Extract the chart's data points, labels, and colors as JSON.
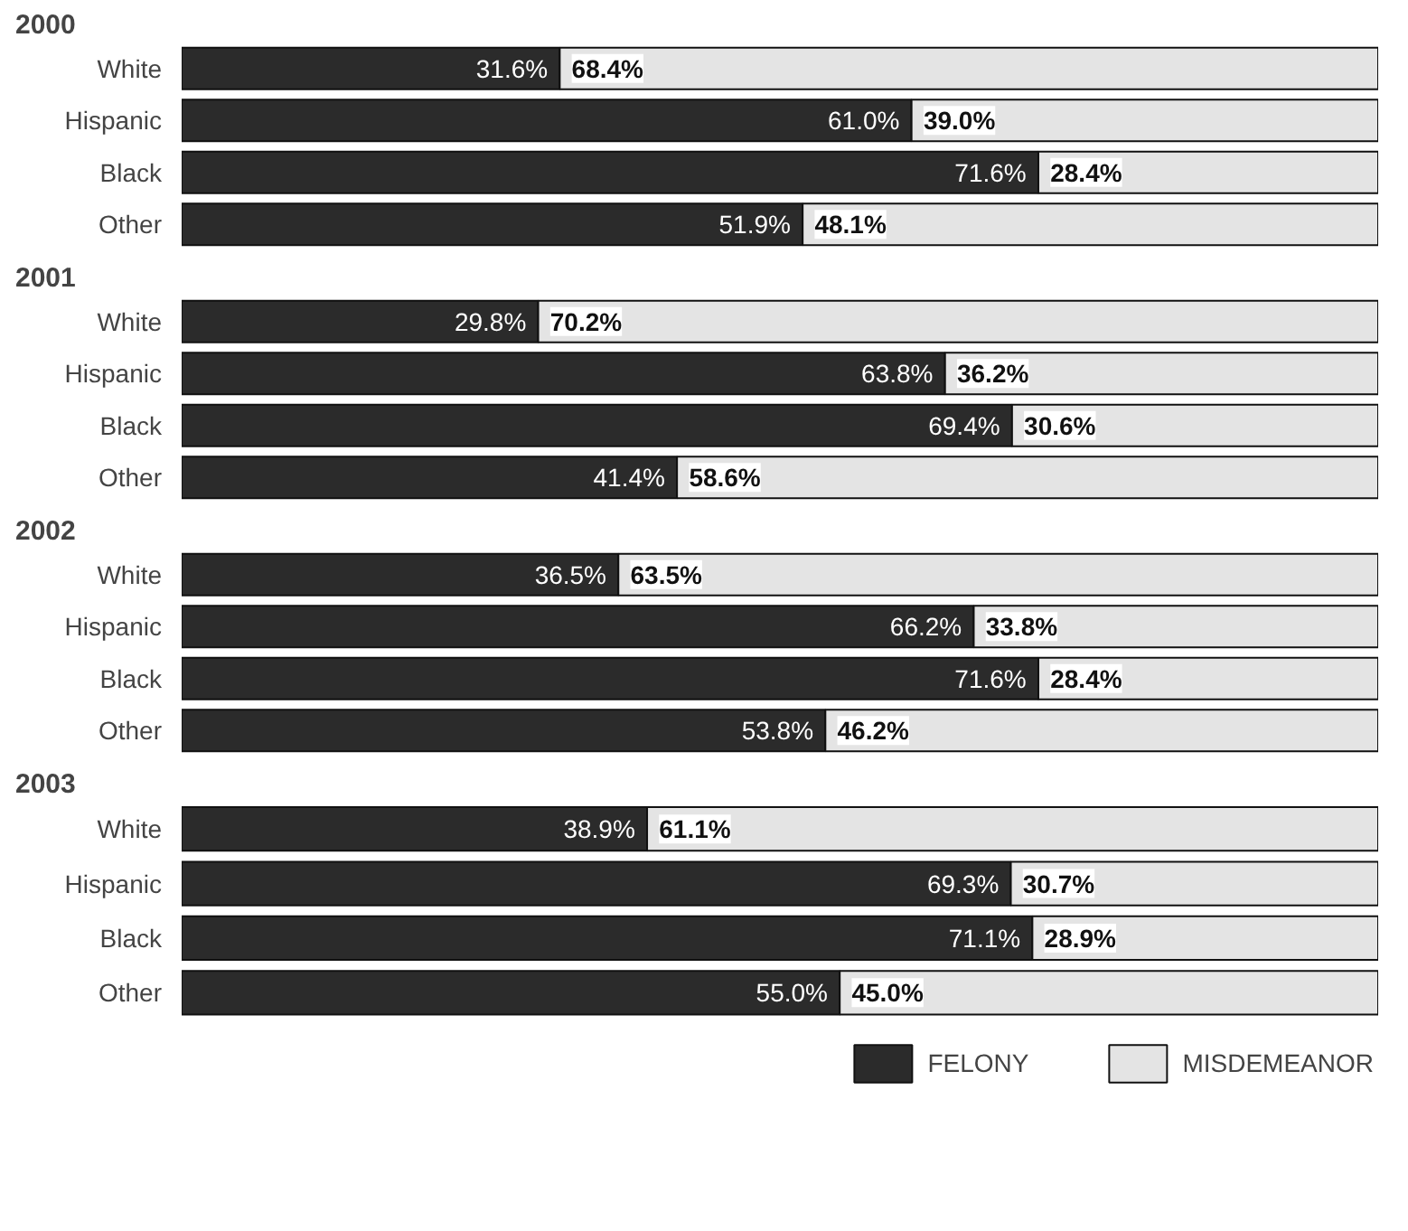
{
  "chart_data": [
    {
      "type": "bar",
      "title": "2000",
      "orientation": "horizontal",
      "stacked": true,
      "tick_labels": "y",
      "legend": false,
      "categories": [
        "White",
        "Hispanic",
        "Black",
        "Other"
      ],
      "series": [
        {
          "color": "#2b2b2b",
          "values": [
            31.6,
            61.0,
            71.6,
            51.9
          ],
          "value_labels": [
            "31.6%",
            "61.0%",
            "71.6%",
            "51.9%"
          ]
        },
        {
          "color": "#e4e4e4",
          "values": [
            68.4,
            39.0,
            28.4,
            48.1
          ],
          "value_labels": [
            "68.4%",
            "39.0%",
            "28.4%",
            "48.1%"
          ]
        }
      ]
    },
    {
      "type": "bar",
      "title": "2001",
      "orientation": "horizontal",
      "stacked": true,
      "tick_labels": "y",
      "legend": false,
      "categories": [
        "White",
        "Hispanic",
        "Black",
        "Other"
      ],
      "series": [
        {
          "color": "#2b2b2b",
          "values": [
            29.8,
            63.8,
            69.4,
            41.4
          ],
          "value_labels": [
            "29.8%",
            "63.8%",
            "69.4%",
            "41.4%"
          ]
        },
        {
          "color": "#e4e4e4",
          "values": [
            70.2,
            36.2,
            30.6,
            58.6
          ],
          "value_labels": [
            "70.2%",
            "36.2%",
            "30.6%",
            "58.6%"
          ]
        }
      ]
    },
    {
      "type": "bar",
      "title": "2002",
      "orientation": "horizontal",
      "stacked": true,
      "tick_labels": "y",
      "legend": false,
      "categories": [
        "White",
        "Hispanic",
        "Black",
        "Other"
      ],
      "series": [
        {
          "color": "#2b2b2b",
          "values": [
            36.5,
            66.2,
            71.6,
            53.8
          ],
          "value_labels": [
            "36.5%",
            "66.2%",
            "71.6%",
            "53.8%"
          ]
        },
        {
          "color": "#e4e4e4",
          "values": [
            63.5,
            33.8,
            28.4,
            46.2
          ],
          "value_labels": [
            "63.5%",
            "33.8%",
            "28.4%",
            "46.2%"
          ]
        }
      ]
    },
    {
      "type": "bar",
      "title": "2003",
      "orientation": "horizontal",
      "stacked": true,
      "tick_labels": "y",
      "legend": "bottom right",
      "categories": [
        "White",
        "Hispanic",
        "Black",
        "Other"
      ],
      "series": [
        {
          "name": "FELONY",
          "color": "#2b2b2b",
          "values": [
            38.9,
            69.3,
            71.1,
            55.0
          ],
          "value_labels": [
            "38.9%",
            "69.3%",
            "71.1%",
            "55.0%"
          ]
        },
        {
          "name": "MISDEMEANOR",
          "color": "#e4e4e4",
          "values": [
            61.1,
            30.7,
            28.9,
            45.0
          ],
          "value_labels": [
            "61.1%",
            "30.7%",
            "28.9%",
            "45.0%"
          ]
        }
      ]
    }
  ]
}
